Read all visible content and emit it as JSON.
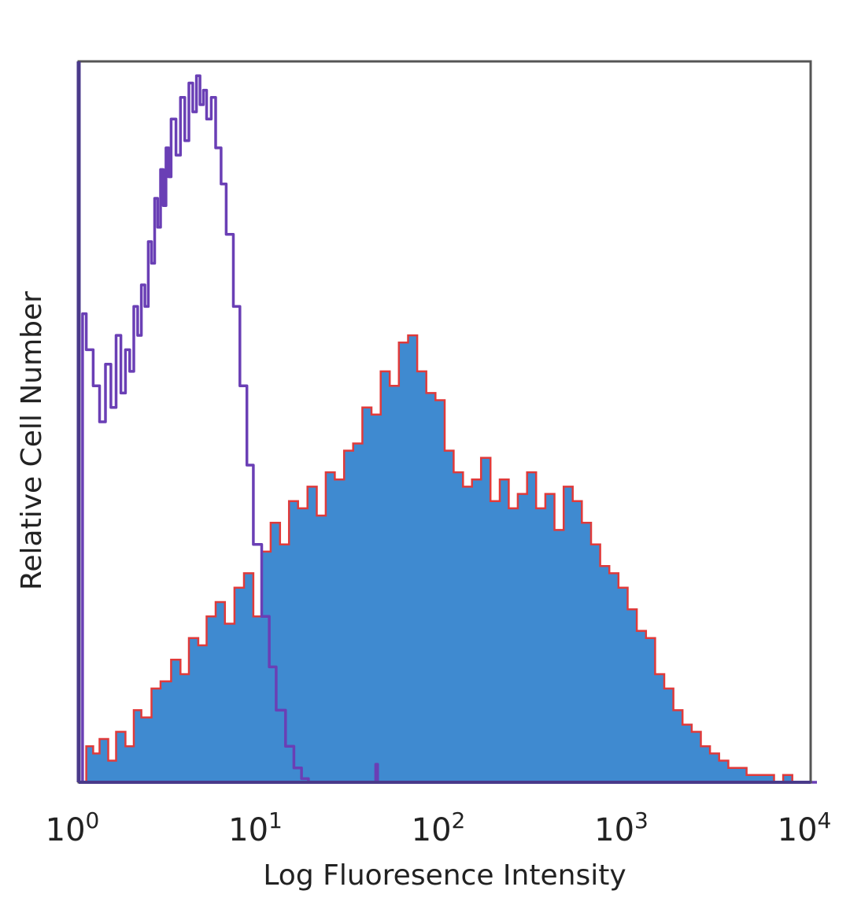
{
  "chart_data": {
    "type": "area",
    "title": "",
    "xlabel": "Log Fluoresence Intensity",
    "ylabel": "Relative Cell Number",
    "x_scale": "log",
    "xlim": [
      1,
      10000
    ],
    "ylim": [
      0,
      100
    ],
    "grid": false,
    "legend": "none",
    "x_ticks": [
      {
        "value": 1,
        "base": "10",
        "exp": "0"
      },
      {
        "value": 10,
        "base": "10",
        "exp": "1"
      },
      {
        "value": 100,
        "base": "10",
        "exp": "2"
      },
      {
        "value": 1000,
        "base": "10",
        "exp": "3"
      },
      {
        "value": 10000,
        "base": "10",
        "exp": "4"
      }
    ],
    "series": [
      {
        "style": "filled",
        "fill": "#3f8ad0",
        "edge": "#e03a3a",
        "x": [
          1.0,
          1.1,
          1.2,
          1.3,
          1.45,
          1.6,
          1.8,
          2.0,
          2.2,
          2.5,
          2.8,
          3.2,
          3.6,
          4.0,
          4.5,
          5.0,
          5.6,
          6.3,
          7.1,
          8.0,
          9.0,
          10.0,
          11.2,
          12.6,
          14.1,
          15.8,
          17.8,
          20.0,
          22.4,
          25.1,
          28.2,
          31.6,
          35.5,
          39.8,
          44.7,
          50.1,
          56.2,
          63.1,
          70.8,
          79.4,
          89.1,
          100,
          112,
          126,
          141,
          158,
          178,
          200,
          224,
          251,
          282,
          316,
          355,
          398,
          447,
          501,
          562,
          631,
          708,
          794,
          891,
          1000,
          1122,
          1259,
          1413,
          1585,
          1778,
          1995,
          2239,
          2512,
          2818,
          3162,
          3548,
          3981,
          4467,
          5012,
          5623,
          6310,
          7079,
          7943,
          8913
        ],
        "y": [
          0,
          5,
          4,
          6,
          3,
          7,
          5,
          10,
          9,
          13,
          14,
          17,
          15,
          20,
          19,
          23,
          25,
          22,
          27,
          29,
          23,
          32,
          36,
          33,
          39,
          38,
          41,
          37,
          43,
          42,
          46,
          47,
          52,
          51,
          57,
          55,
          61,
          62,
          57,
          54,
          53,
          46,
          43,
          41,
          42,
          45,
          39,
          42,
          38,
          40,
          43,
          38,
          40,
          35,
          41,
          39,
          36,
          33,
          30,
          29,
          27,
          24,
          21,
          20,
          15,
          13,
          10,
          8,
          7,
          5,
          4,
          3,
          2,
          2,
          1,
          1,
          1,
          0,
          1,
          0,
          0
        ]
      },
      {
        "style": "outline",
        "stroke": "#6a3fb5",
        "x": [
          1.0,
          1.05,
          1.1,
          1.2,
          1.3,
          1.4,
          1.5,
          1.6,
          1.7,
          1.8,
          1.9,
          2.0,
          2.1,
          2.2,
          2.3,
          2.4,
          2.5,
          2.6,
          2.7,
          2.8,
          2.9,
          3.0,
          3.1,
          3.2,
          3.4,
          3.6,
          3.8,
          4.0,
          4.2,
          4.4,
          4.6,
          4.8,
          5.0,
          5.3,
          5.6,
          6.0,
          6.4,
          7.0,
          7.6,
          8.3,
          9.0,
          10.0,
          11.0,
          12.0,
          13.5,
          15.0,
          16.5,
          18.0,
          20.0,
          25.0,
          30.0,
          40.0,
          42.0,
          43.0,
          45.0,
          50.0,
          100,
          1000,
          10000
        ],
        "y": [
          0,
          65,
          60,
          55,
          50,
          58,
          52,
          62,
          54,
          60,
          57,
          66,
          62,
          69,
          66,
          75,
          72,
          81,
          77,
          85,
          80,
          88,
          84,
          92,
          87,
          95,
          89,
          97,
          93,
          98,
          94,
          96,
          92,
          95,
          88,
          83,
          76,
          66,
          55,
          44,
          33,
          23,
          16,
          10,
          5,
          2,
          0.5,
          0,
          0,
          0,
          0,
          0,
          2.5,
          0,
          0,
          0,
          0,
          0,
          0
        ]
      }
    ]
  }
}
